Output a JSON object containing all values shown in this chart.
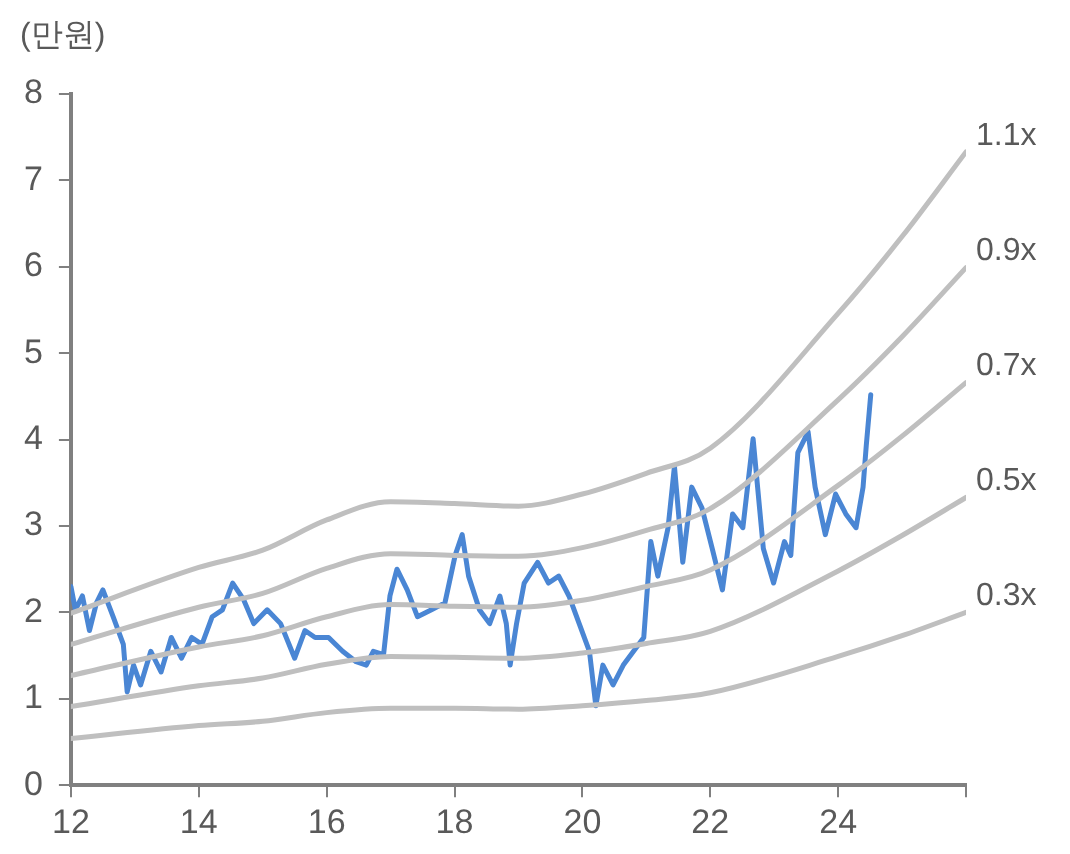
{
  "chart_data": {
    "type": "line",
    "ylabel": "(만원)",
    "xlim": [
      12,
      26
    ],
    "xticks": [
      12,
      14,
      16,
      18,
      20,
      22,
      24,
      {
        "value": 26,
        "label": null
      }
    ],
    "ylim": [
      0,
      8
    ],
    "yticks": [
      0,
      1,
      2,
      3,
      4,
      5,
      6,
      7,
      8
    ],
    "grid": false,
    "legend": false,
    "marker": "none",
    "line_style": "solid",
    "series": [
      {
        "name": "1.1x",
        "color": "#bfbfbf",
        "x": [
          12,
          14,
          15,
          16,
          17,
          18,
          19,
          20,
          21,
          22,
          24,
          25,
          26
        ],
        "values": [
          1.99,
          2.52,
          2.72,
          3.07,
          3.28,
          3.26,
          3.23,
          3.37,
          3.61,
          3.9,
          5.46,
          6.35,
          7.33
        ]
      },
      {
        "name": "0.9x",
        "color": "#bfbfbf",
        "x": [
          12,
          14,
          15,
          16,
          17,
          18,
          19,
          20,
          21,
          22,
          24,
          25,
          26
        ],
        "values": [
          1.63,
          2.06,
          2.22,
          2.51,
          2.68,
          2.66,
          2.65,
          2.75,
          2.95,
          3.2,
          4.46,
          5.19,
          5.99
        ]
      },
      {
        "name": "0.7x",
        "color": "#bfbfbf",
        "x": [
          12,
          14,
          15,
          16,
          17,
          18,
          19,
          20,
          21,
          22,
          24,
          25,
          26
        ],
        "values": [
          1.27,
          1.6,
          1.73,
          1.95,
          2.09,
          2.07,
          2.06,
          2.14,
          2.3,
          2.49,
          3.47,
          4.04,
          4.66
        ]
      },
      {
        "name": "0.5x",
        "color": "#bfbfbf",
        "x": [
          12,
          14,
          15,
          16,
          17,
          18,
          19,
          20,
          21,
          22,
          24,
          25,
          26
        ],
        "values": [
          0.91,
          1.15,
          1.24,
          1.4,
          1.49,
          1.48,
          1.47,
          1.53,
          1.64,
          1.78,
          2.48,
          2.89,
          3.33
        ]
      },
      {
        "name": "0.3x",
        "color": "#bfbfbf",
        "x": [
          12,
          14,
          15,
          16,
          17,
          18,
          19,
          20,
          21,
          22,
          24,
          25,
          26
        ],
        "values": [
          0.54,
          0.69,
          0.74,
          0.84,
          0.89,
          0.89,
          0.88,
          0.92,
          0.98,
          1.07,
          1.49,
          1.73,
          2.0
        ]
      },
      {
        "color": "#4a86d4",
        "x": [
          12.0,
          12.07,
          12.18,
          12.29,
          12.4,
          12.5,
          12.66,
          12.82,
          12.88,
          12.98,
          13.09,
          13.25,
          13.41,
          13.57,
          13.73,
          13.89,
          14.05,
          14.21,
          14.37,
          14.53,
          14.7,
          14.86,
          15.07,
          15.28,
          15.5,
          15.66,
          15.82,
          16.03,
          16.25,
          16.46,
          16.62,
          16.73,
          16.89,
          16.99,
          17.1,
          17.26,
          17.42,
          17.64,
          17.85,
          18.01,
          18.12,
          18.22,
          18.39,
          18.55,
          18.71,
          18.81,
          18.87,
          18.97,
          19.09,
          19.3,
          19.47,
          19.63,
          19.79,
          19.95,
          20.11,
          20.21,
          20.32,
          20.48,
          20.64,
          20.8,
          20.96,
          21.07,
          21.18,
          21.34,
          21.44,
          21.57,
          21.71,
          21.87,
          22.03,
          22.19,
          22.35,
          22.51,
          22.67,
          22.83,
          22.99,
          23.16,
          23.26,
          23.37,
          23.53,
          23.64,
          23.8,
          23.96,
          24.12,
          24.28,
          24.39,
          24.44,
          24.51
        ],
        "values": [
          2.3,
          2.03,
          2.19,
          1.79,
          2.11,
          2.26,
          1.95,
          1.63,
          1.08,
          1.39,
          1.16,
          1.55,
          1.31,
          1.71,
          1.47,
          1.71,
          1.63,
          1.95,
          2.03,
          2.34,
          2.15,
          1.87,
          2.03,
          1.87,
          1.47,
          1.79,
          1.71,
          1.71,
          1.55,
          1.43,
          1.39,
          1.55,
          1.51,
          2.19,
          2.5,
          2.26,
          1.95,
          2.03,
          2.11,
          2.66,
          2.9,
          2.42,
          2.03,
          1.87,
          2.19,
          1.87,
          1.39,
          1.87,
          2.34,
          2.58,
          2.34,
          2.42,
          2.19,
          1.87,
          1.55,
          0.92,
          1.39,
          1.16,
          1.39,
          1.55,
          1.71,
          2.82,
          2.42,
          2.98,
          3.69,
          2.58,
          3.45,
          3.21,
          2.74,
          2.26,
          3.14,
          2.98,
          4.01,
          2.74,
          2.34,
          2.82,
          2.66,
          3.85,
          4.09,
          3.45,
          2.9,
          3.37,
          3.14,
          2.98,
          3.45,
          3.93,
          4.52
        ]
      }
    ]
  }
}
